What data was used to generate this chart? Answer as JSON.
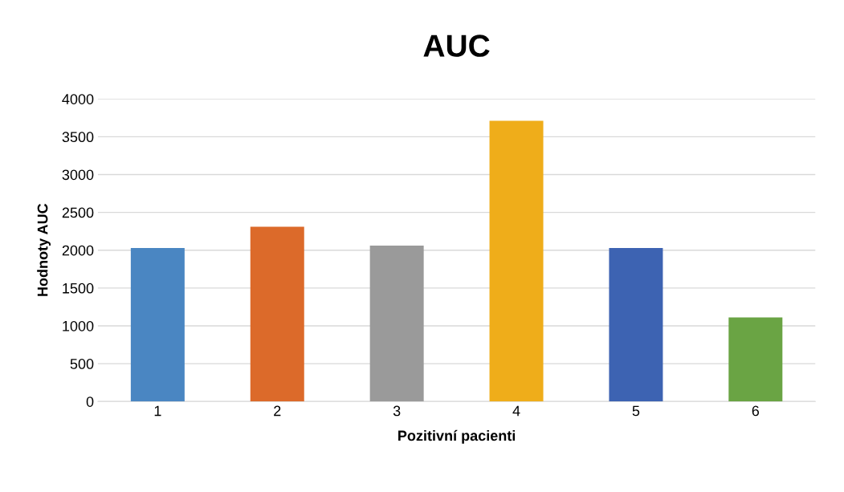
{
  "chart_data": {
    "type": "bar",
    "title": "AUC",
    "xlabel": "Pozitivní pacienti",
    "ylabel": "Hodnoty AUC",
    "categories": [
      "1",
      "2",
      "3",
      "4",
      "5",
      "6"
    ],
    "values": [
      2030,
      2310,
      2060,
      3710,
      2030,
      1110
    ],
    "colors": [
      "#4a86c2",
      "#dc6a2a",
      "#9a9a9a",
      "#efad1a",
      "#3d63b2",
      "#6aa444"
    ],
    "ylim": [
      0,
      4000
    ],
    "yticks": [
      0,
      500,
      1000,
      1500,
      2000,
      2500,
      3000,
      3500,
      4000
    ],
    "grid": "y",
    "legend": false
  }
}
